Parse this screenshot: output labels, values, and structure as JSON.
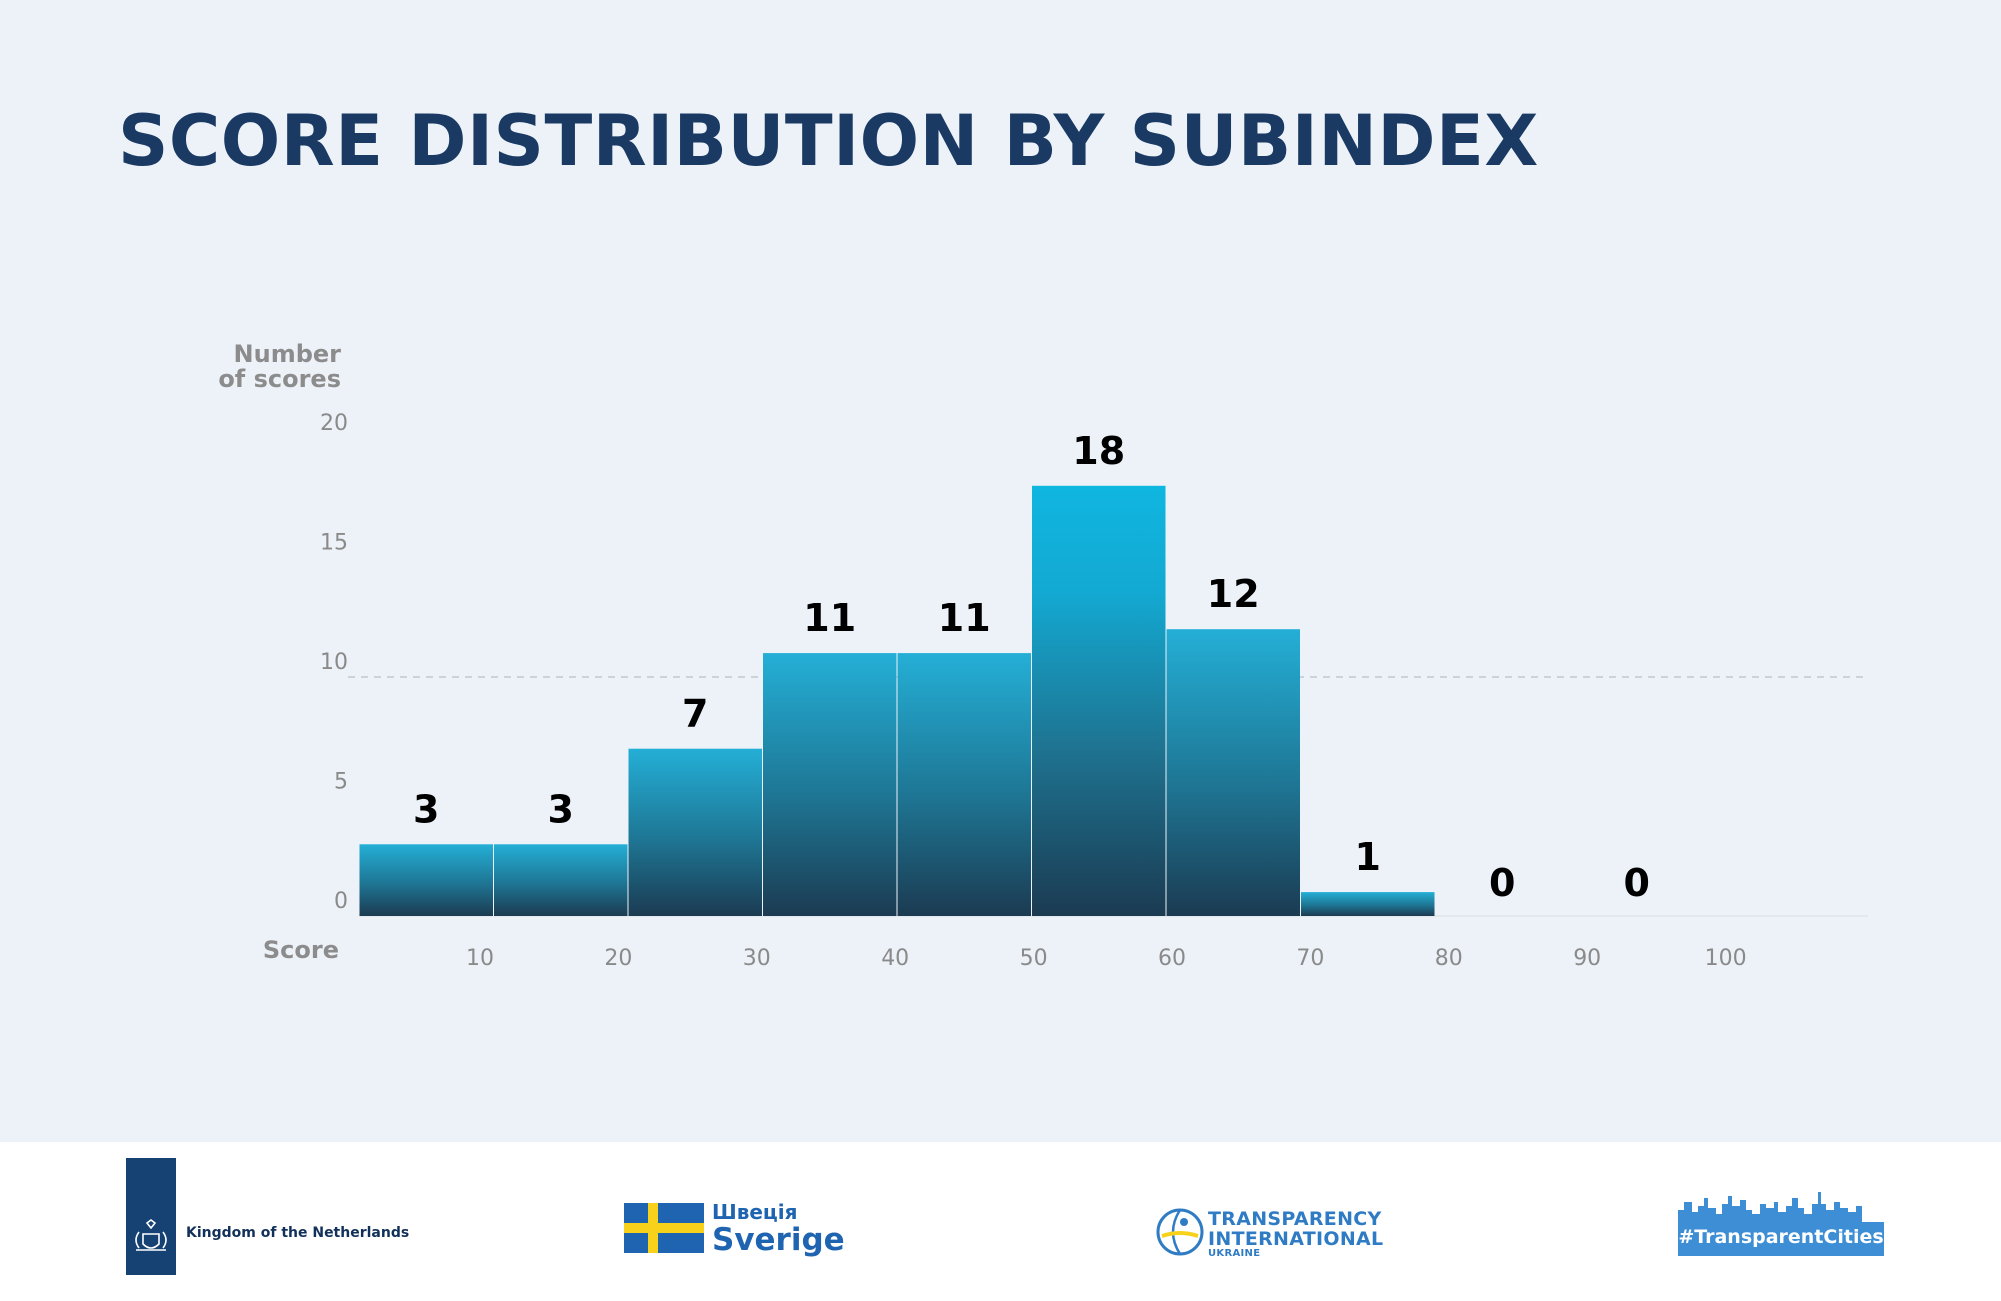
{
  "title": "SCORE DISTRIBUTION BY SUBINDEX",
  "chart_data": {
    "type": "bar",
    "title": "SCORE DISTRIBUTION BY SUBINDEX",
    "ylabel_line1": "Number",
    "ylabel_line2": "of scores",
    "xlabel": "Score",
    "bins": [
      [
        0,
        10
      ],
      [
        10,
        20
      ],
      [
        20,
        30
      ],
      [
        30,
        40
      ],
      [
        40,
        50
      ],
      [
        50,
        60
      ],
      [
        60,
        70
      ],
      [
        70,
        80
      ],
      [
        80,
        90
      ],
      [
        90,
        100
      ]
    ],
    "values": [
      3,
      3,
      7,
      11,
      11,
      18,
      12,
      1,
      0,
      0
    ],
    "x_tick_labels": [
      "10",
      "20",
      "30",
      "40",
      "50",
      "60",
      "70",
      "80",
      "90",
      "100"
    ],
    "y_tick_labels": [
      "0",
      "5",
      "10",
      "15",
      "20"
    ],
    "ylim": [
      0,
      20
    ],
    "reference_line_value": 10,
    "grid": false,
    "colors": {
      "bar_bottom": "#1b3b52",
      "bar_mid": "#1e7593",
      "bar_top": "#24afd6",
      "bar_top_max": "#0fb6e0",
      "value_label": "#000000",
      "axis_text": "#8a8a8a",
      "axis_title": "#8c8c8c",
      "reference_line": "#c2c8d0"
    }
  },
  "footer": {
    "netherlands": "Kingdom of the Netherlands",
    "sweden_ua": "Швеція",
    "sweden": "Sverige",
    "ti_line1": "TRANSPARENCY",
    "ti_line2": "INTERNATIONAL",
    "ti_line3": "UKRAINE",
    "transparent_cities": "#TransparentCities"
  },
  "colors": {
    "background": "#edf2f9",
    "title": "#1a3a63",
    "footer_bg": "#ffffff",
    "netherlands_blue": "#154273",
    "sweden_blue": "#1f64b0",
    "sweden_yellow": "#f7d11a",
    "ti_blue": "#2f7cc4",
    "tc_blue": "#3d8ed5"
  },
  "icons": {
    "netherlands": "royal-coat-of-arms-icon",
    "sweden": "swedish-flag-icon",
    "ti": "transparency-international-globe-icon",
    "tc": "city-skyline-icon"
  }
}
